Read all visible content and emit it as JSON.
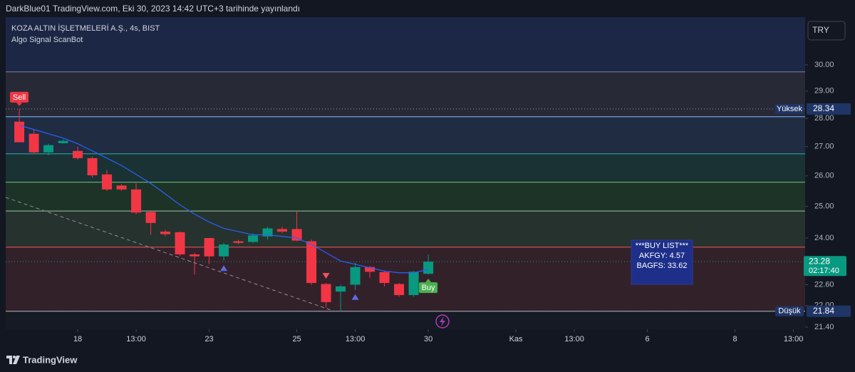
{
  "header": {
    "published": "DarkBlue01 TradingView.com, Eki 30, 2023 14:42 UTC+3 tarihinde yayınlandı"
  },
  "footer": {
    "brand": "TradingView"
  },
  "chart_data": {
    "type": "candlestick",
    "title": "KOZA ALTIN İŞLETMELERİ A.Ş., 4s, BIST",
    "subtitle": "Algo Signal ScanBot",
    "currency": "TRY",
    "yscale": "log",
    "x": [
      0,
      1,
      2,
      3,
      4,
      5,
      6,
      7,
      8,
      9,
      10,
      11,
      12,
      13,
      14,
      15,
      16,
      17,
      18,
      19,
      20,
      21,
      22,
      23,
      24,
      25,
      26,
      27,
      28
    ],
    "open": [
      27.88,
      27.45,
      26.8,
      27.12,
      26.85,
      26.6,
      26.05,
      25.68,
      25.55,
      24.82,
      24.2,
      24.18,
      23.5,
      24.0,
      23.44,
      23.9,
      23.88,
      24.05,
      24.28,
      24.28,
      23.9,
      22.62,
      22.4,
      22.6,
      23.12,
      22.97,
      22.62,
      22.3,
      22.92
    ],
    "high": [
      28.34,
      27.6,
      27.1,
      27.25,
      27.0,
      26.65,
      26.2,
      25.72,
      25.75,
      24.85,
      24.25,
      24.2,
      23.55,
      24.0,
      23.85,
      23.95,
      24.15,
      24.35,
      24.35,
      24.85,
      23.95,
      22.65,
      22.6,
      23.25,
      23.15,
      23.0,
      22.65,
      23.0,
      23.5
    ],
    "low": [
      27.15,
      26.75,
      26.7,
      27.1,
      26.55,
      25.95,
      25.5,
      25.5,
      24.75,
      24.1,
      24.05,
      23.45,
      22.9,
      23.2,
      23.3,
      23.8,
      23.85,
      23.95,
      24.15,
      23.9,
      22.6,
      21.95,
      21.84,
      22.45,
      22.8,
      22.55,
      22.25,
      22.25,
      22.9
    ],
    "close": [
      27.15,
      26.8,
      27.05,
      27.2,
      26.6,
      26.02,
      25.55,
      25.55,
      24.8,
      24.47,
      24.12,
      23.5,
      23.44,
      23.44,
      23.8,
      23.85,
      24.08,
      24.3,
      24.2,
      23.92,
      22.65,
      22.1,
      22.55,
      23.12,
      22.98,
      22.65,
      22.3,
      22.98,
      23.28
    ],
    "up_color": "#089981",
    "down_color": "#f23645",
    "moving_average": {
      "color": "#2962ff",
      "values": [
        27.75,
        27.6,
        27.45,
        27.3,
        27.1,
        26.85,
        26.6,
        26.35,
        26.05,
        25.75,
        25.4,
        25.05,
        24.75,
        24.5,
        24.3,
        24.2,
        24.1,
        24.1,
        24.05,
        24.0,
        23.8,
        23.55,
        23.3,
        23.2,
        23.1,
        23.0,
        22.95,
        22.95,
        23.05
      ]
    },
    "xlim": [
      -0.93,
      53.8
    ],
    "ylim": [
      21.34,
      31.9
    ],
    "xticks": [
      {
        "value": 4,
        "label": "18"
      },
      {
        "value": 8,
        "label": "13:00"
      },
      {
        "value": 13,
        "label": "23"
      },
      {
        "value": 19,
        "label": "25"
      },
      {
        "value": 23,
        "label": "13:00"
      },
      {
        "value": 28,
        "label": "30"
      },
      {
        "value": 34,
        "label": "Kas"
      },
      {
        "value": 38,
        "label": "13:00"
      },
      {
        "value": 43,
        "label": "6"
      },
      {
        "value": 49,
        "label": "8"
      },
      {
        "value": 53,
        "label": "13:00"
      }
    ],
    "yticks": [
      {
        "value": 30,
        "label": "30.00"
      },
      {
        "value": 29,
        "label": "29.00"
      },
      {
        "value": 28,
        "label": "28.00"
      },
      {
        "value": 27,
        "label": "27.00"
      },
      {
        "value": 26,
        "label": "26.00"
      },
      {
        "value": 25,
        "label": "25.00"
      },
      {
        "value": 24,
        "label": "24.00"
      },
      {
        "value": 22.6,
        "label": "22.60"
      },
      {
        "value": 22,
        "label": "22.00"
      },
      {
        "value": 21.4,
        "label": "21.40"
      }
    ],
    "levels": [
      {
        "value": 29.73,
        "color": "#6d7183"
      },
      {
        "value": 28.06,
        "color": "#6f9fd8"
      },
      {
        "value": 26.75,
        "color": "#26a69a"
      },
      {
        "value": 25.79,
        "color": "#5fae6a"
      },
      {
        "value": 24.85,
        "color": "#7fa88a"
      },
      {
        "value": 23.72,
        "color": "#e0504f"
      },
      {
        "value": 21.84,
        "color": "#9598a1"
      }
    ],
    "band_colors": [
      "#1c2746",
      "#272a36",
      "#1f2c42",
      "#1a3234",
      "#1e3328",
      "#26322d",
      "#33212a",
      "#161a25"
    ],
    "high_mark": {
      "label": "Yüksek",
      "value": 28.34
    },
    "low_mark": {
      "label": "Düşük",
      "value": 21.84
    },
    "last": {
      "value": 23.28,
      "countdown": "02:17:40"
    },
    "markers": [
      {
        "x": 0,
        "label": "Sell",
        "side": "above",
        "color": "#f23645"
      },
      {
        "x": 28,
        "label": "Buy",
        "side": "below",
        "color": "#4caf50"
      },
      {
        "x": 14,
        "side": "below",
        "color": "#5b6be6"
      },
      {
        "x": 21,
        "side": "above",
        "color": "#f7525f"
      },
      {
        "x": 23,
        "side": "below",
        "color": "#5b6be6"
      }
    ],
    "annotation": {
      "lines": [
        "***BUY LIST***",
        "AKFGY: 4.57",
        "BAGFS: 33.62"
      ]
    }
  }
}
